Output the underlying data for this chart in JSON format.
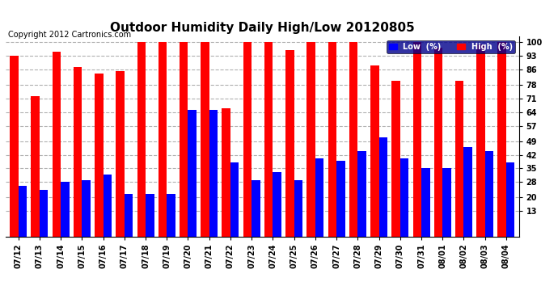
{
  "title": "Outdoor Humidity Daily High/Low 20120805",
  "copyright": "Copyright 2012 Cartronics.com",
  "yticks": [
    13,
    20,
    28,
    35,
    42,
    49,
    57,
    64,
    71,
    78,
    86,
    93,
    100
  ],
  "dates": [
    "07/12",
    "07/13",
    "07/14",
    "07/15",
    "07/16",
    "07/17",
    "07/18",
    "07/19",
    "07/20",
    "07/21",
    "07/22",
    "07/23",
    "07/24",
    "07/25",
    "07/26",
    "07/27",
    "07/28",
    "07/29",
    "07/30",
    "07/31",
    "08/01",
    "08/02",
    "08/03",
    "08/04"
  ],
  "high": [
    93,
    72,
    95,
    87,
    84,
    85,
    100,
    100,
    100,
    100,
    66,
    100,
    100,
    96,
    100,
    100,
    100,
    88,
    80,
    100,
    97,
    80,
    99,
    100
  ],
  "low": [
    26,
    24,
    28,
    29,
    32,
    22,
    22,
    22,
    65,
    65,
    38,
    29,
    33,
    29,
    40,
    39,
    44,
    51,
    40,
    35,
    35,
    46,
    44,
    38
  ],
  "high_color": "#ff0000",
  "low_color": "#0000ff",
  "bg_color": "#ffffff",
  "grid_color": "#b0b0b0",
  "bar_width": 0.4,
  "ylim": [
    0,
    103
  ],
  "title_fontsize": 11,
  "copyright_fontsize": 7,
  "tick_fontsize": 7,
  "legend_label_low": "Low  (%)",
  "legend_label_high": "High  (%)"
}
